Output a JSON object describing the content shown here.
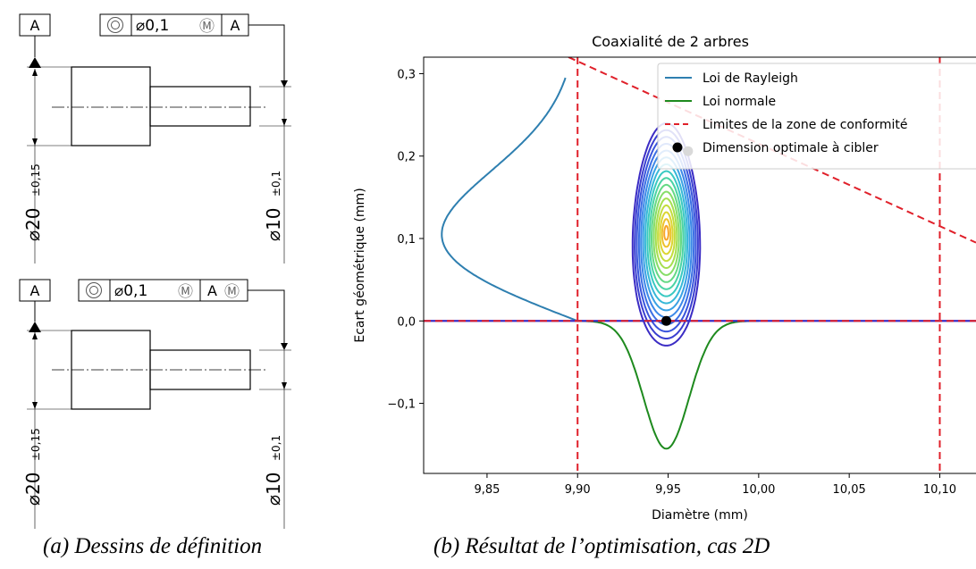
{
  "drawings": {
    "top": {
      "datum_label": "A",
      "fcf": {
        "symbol": "concentricity-icon",
        "tolerance": "⌀0,1",
        "modifier": "Ⓜ",
        "datum": "A"
      },
      "dim_large": {
        "value": "⌀20",
        "tol": "±0,15"
      },
      "dim_small": {
        "value": "⌀10",
        "tol": "±0,1"
      }
    },
    "bottom": {
      "datum_label": "A",
      "fcf": {
        "symbol": "concentricity-icon",
        "tolerance": "⌀0,1",
        "modifier": "Ⓜ",
        "datum": "A",
        "datum_modifier": "Ⓜ"
      },
      "dim_large": {
        "value": "⌀20",
        "tol": "±0,15"
      },
      "dim_small": {
        "value": "⌀10",
        "tol": "±0,1"
      }
    }
  },
  "captions": {
    "left": "(a) Dessins de définition",
    "right": "(b) Résultat de l’optimisation, cas 2D"
  },
  "chart_data": {
    "type": "line",
    "title": "Coaxialité de 2 arbres",
    "xlabel": "Diamètre (mm)",
    "ylabel": "Ecart géométrique (mm)",
    "xlim": [
      9.815,
      10.12
    ],
    "ylim": [
      -0.185,
      0.32
    ],
    "xticks": [
      9.85,
      9.9,
      9.95,
      10.0,
      10.05,
      10.1
    ],
    "xtick_labels": [
      "9,85",
      "9,90",
      "9,95",
      "10,00",
      "10,05",
      "10,10"
    ],
    "yticks": [
      -0.1,
      0.0,
      0.1,
      0.2,
      0.3
    ],
    "ytick_labels": [
      "−0,1",
      "0,0",
      "0,1",
      "0,2",
      "0,3"
    ],
    "grid": false,
    "legend_position": "top-right",
    "series": [
      {
        "name": "Loi de Rayleigh",
        "color": "#2e7fb0",
        "kind": "rayleigh",
        "x_base": 9.9,
        "peak_x": 9.825,
        "peak_y": 0.105,
        "y_end": 0.295
      },
      {
        "name": "Loi normale",
        "color": "#1e8a1e",
        "kind": "normal",
        "mean": 9.949,
        "sd": 0.0125,
        "peak_y": -0.155,
        "x_range": [
          9.9,
          10.0
        ]
      },
      {
        "name": "Limites de la zone de conformité",
        "color": "#e0202a",
        "kind": "limits",
        "vertical_x": [
          9.9,
          10.1
        ],
        "horizontal_y": 0.0,
        "diagonal": [
          [
            9.895,
            0.32
          ],
          [
            10.12,
            0.095
          ]
        ]
      },
      {
        "name": "Dimension optimale à cibler",
        "color": "#000000",
        "kind": "points",
        "points": [
          [
            9.961,
            0.206
          ],
          [
            9.949,
            0.0
          ]
        ]
      }
    ],
    "contours": {
      "center": [
        9.949,
        0.107
      ],
      "sx": 0.0185,
      "sy": 0.137,
      "levels": 16
    }
  }
}
